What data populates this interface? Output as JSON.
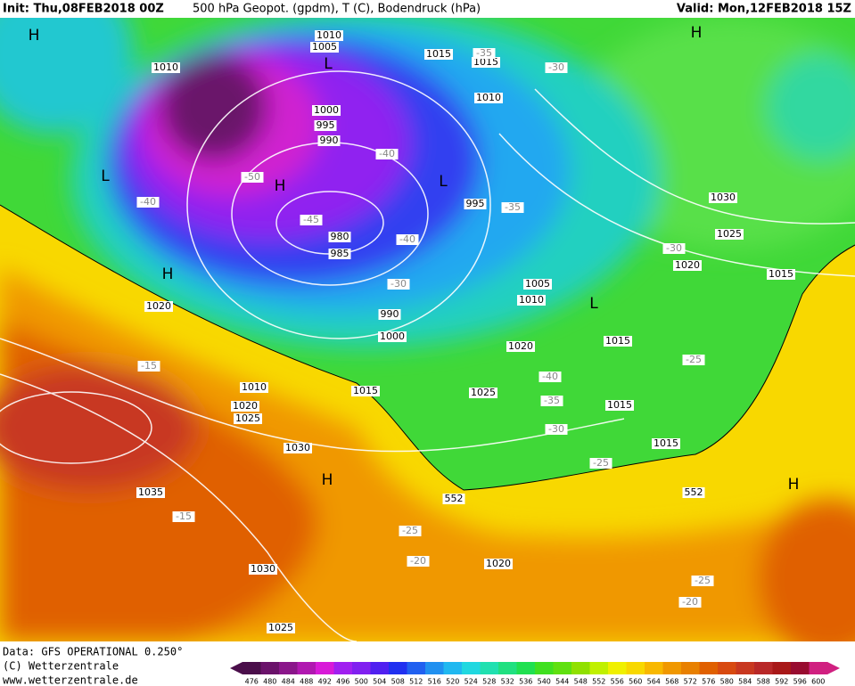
{
  "header": {
    "init": "Init: Thu,08FEB2018 00Z",
    "title": "500 hPa Geopot. (gpdm), T (C), Bodendruck (hPa)",
    "valid": "Valid: Mon,12FEB2018 15Z"
  },
  "footer": {
    "data": "Data: GFS OPERATIONAL 0.250°",
    "copyright": "(C) Wetterzentrale",
    "url": "www.wetterzentrale.de"
  },
  "colorbar": {
    "labels": [
      476,
      480,
      484,
      488,
      492,
      496,
      500,
      504,
      508,
      512,
      516,
      520,
      524,
      528,
      532,
      536,
      540,
      544,
      548,
      552,
      556,
      560,
      564,
      568,
      572,
      576,
      580,
      584,
      588,
      592,
      596,
      600
    ],
    "colors": [
      "#4a0e4a",
      "#6a126a",
      "#8a168a",
      "#b018b0",
      "#d81ad8",
      "#a020f0",
      "#8020f0",
      "#5020f0",
      "#2030f0",
      "#2060f0",
      "#2090f0",
      "#20b8f0",
      "#20d8e0",
      "#20e0b0",
      "#20e080",
      "#20e050",
      "#40e020",
      "#60e010",
      "#90e000",
      "#c0f000",
      "#f0f000",
      "#f8d800",
      "#f8b800",
      "#f09800",
      "#e88000",
      "#e06000",
      "#d84a10",
      "#c83820",
      "#b82828",
      "#a81818",
      "#980c30",
      "#d02080"
    ]
  },
  "map": {
    "centers": [
      "H",
      "L",
      "H",
      "H",
      "L",
      "L",
      "H",
      "L",
      "H",
      "H"
    ],
    "pressure_labels": [
      "1010",
      "1005",
      "1010",
      "1015",
      "1015",
      "1010",
      "1000",
      "995",
      "990",
      "995",
      "980",
      "985",
      "1030",
      "1025",
      "1020",
      "1015",
      "1020",
      "1005",
      "1010",
      "990",
      "1000",
      "1015",
      "1020",
      "1010",
      "1015",
      "1025",
      "1020",
      "1025",
      "1015",
      "1015",
      "1030",
      "552",
      "552",
      "1035",
      "1020",
      "1030",
      "1025"
    ],
    "temperature_labels": [
      "-35",
      "-30",
      "-40",
      "-50",
      "-40",
      "-35",
      "-45",
      "-40",
      "-30",
      "-30",
      "-15",
      "-25",
      "-40",
      "-35",
      "-30",
      "-25",
      "-15",
      "-25",
      "-20",
      "-25",
      "-20"
    ]
  }
}
